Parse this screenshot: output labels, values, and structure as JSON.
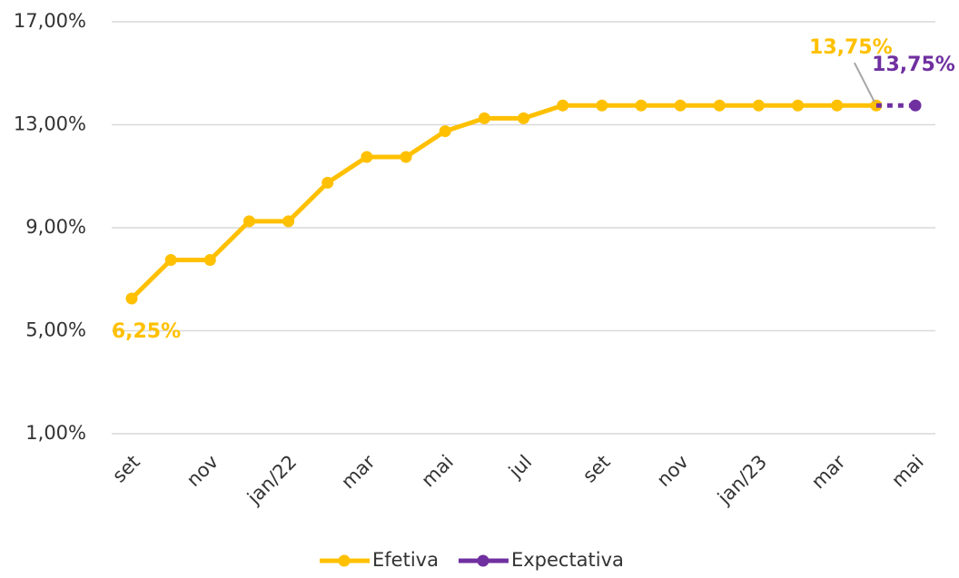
{
  "chart_data": {
    "type": "line",
    "categories": [
      "set",
      null,
      "nov",
      null,
      "jan/22",
      null,
      "mar",
      null,
      "mai",
      null,
      "jul",
      null,
      "set",
      null,
      "nov",
      null,
      "jan/23",
      null,
      "mar",
      null,
      "mai"
    ],
    "series": [
      {
        "name": "Efetiva",
        "color": "#FFC000",
        "dashed": false,
        "values": [
          6.25,
          7.75,
          7.75,
          9.25,
          9.25,
          10.75,
          11.75,
          11.75,
          12.75,
          13.25,
          13.25,
          13.75,
          13.75,
          13.75,
          13.75,
          13.75,
          13.75,
          13.75,
          13.75,
          13.75,
          null
        ],
        "value_labels": [
          "6,25%",
          null,
          null,
          null,
          null,
          null,
          null,
          null,
          null,
          null,
          null,
          null,
          null,
          null,
          null,
          null,
          null,
          null,
          null,
          "13,75%",
          null
        ]
      },
      {
        "name": "Expectativa",
        "color": "#7030A0",
        "dashed": true,
        "values": [
          null,
          null,
          null,
          null,
          null,
          null,
          null,
          null,
          null,
          null,
          null,
          null,
          null,
          null,
          null,
          null,
          null,
          null,
          null,
          13.75,
          13.75
        ],
        "value_labels": [
          null,
          null,
          null,
          null,
          null,
          null,
          null,
          null,
          null,
          null,
          null,
          null,
          null,
          null,
          null,
          null,
          null,
          null,
          null,
          null,
          "13,75%"
        ]
      }
    ],
    "ylim": [
      1,
      17
    ],
    "yticks": [
      {
        "value": 1,
        "label": "1,00%"
      },
      {
        "value": 5,
        "label": "5,00%"
      },
      {
        "value": 9,
        "label": "9,00%"
      },
      {
        "value": 13,
        "label": "13,00%"
      },
      {
        "value": 17,
        "label": "17,00%"
      }
    ],
    "grid": true,
    "legend": "bottom"
  }
}
